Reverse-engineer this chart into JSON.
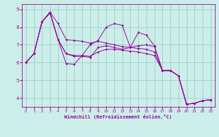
{
  "xlabel": "Windchill (Refroidissement éolien,°C)",
  "xlim": [
    -0.5,
    23.5
  ],
  "ylim": [
    3.5,
    9.3
  ],
  "yticks": [
    4,
    5,
    6,
    7,
    8,
    9
  ],
  "xticks": [
    0,
    1,
    2,
    3,
    4,
    5,
    6,
    7,
    8,
    9,
    10,
    11,
    12,
    13,
    14,
    15,
    16,
    17,
    18,
    19,
    20,
    21,
    22,
    23
  ],
  "bg_color": "#cceee8",
  "line_color": "#990099",
  "grid_color": "#99cccc",
  "series": [
    [
      6.0,
      6.5,
      8.3,
      8.85,
      8.2,
      7.3,
      7.25,
      7.2,
      7.1,
      7.2,
      7.1,
      7.0,
      6.9,
      6.85,
      6.8,
      6.75,
      6.6,
      5.55,
      5.55,
      5.25,
      3.65,
      3.7,
      3.85,
      3.9
    ],
    [
      6.0,
      6.5,
      8.3,
      8.8,
      7.3,
      6.5,
      6.35,
      6.35,
      6.3,
      6.85,
      6.95,
      6.85,
      6.75,
      6.85,
      6.95,
      7.0,
      6.9,
      5.55,
      5.55,
      5.25,
      3.65,
      3.7,
      3.85,
      3.9
    ],
    [
      6.0,
      6.5,
      8.3,
      8.8,
      7.3,
      6.5,
      6.4,
      6.4,
      6.35,
      6.6,
      6.75,
      6.75,
      6.7,
      6.65,
      6.6,
      6.5,
      6.4,
      5.55,
      5.55,
      5.25,
      3.65,
      3.7,
      3.85,
      3.9
    ],
    [
      6.0,
      6.5,
      8.3,
      8.85,
      7.3,
      5.95,
      5.9,
      6.4,
      7.0,
      7.25,
      8.0,
      8.2,
      8.1,
      6.85,
      7.7,
      7.55,
      6.95,
      5.55,
      5.55,
      5.25,
      3.65,
      3.7,
      3.85,
      3.9
    ]
  ]
}
